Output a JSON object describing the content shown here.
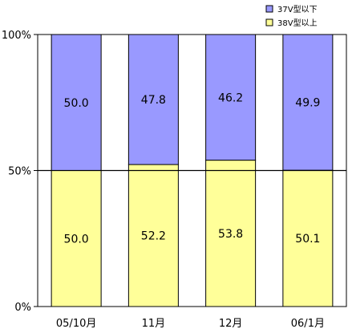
{
  "chart_data": {
    "type": "bar",
    "stacked": true,
    "percent": true,
    "categories": [
      "05/10月",
      "11月",
      "12月",
      "06/1月"
    ],
    "series": [
      {
        "name": "38V型以上",
        "values": [
          50.0,
          52.2,
          53.8,
          50.1
        ],
        "color": "#ffff99",
        "labels": [
          "50.0",
          "52.2",
          "53.8",
          "50.1"
        ]
      },
      {
        "name": "37V型以下",
        "values": [
          50.0,
          47.8,
          46.2,
          49.9
        ],
        "color": "#9999ff",
        "labels": [
          "50.0",
          "47.8",
          "46.2",
          "49.9"
        ]
      }
    ],
    "legend_order": [
      1,
      0
    ],
    "legend_position": "top-right",
    "ylim": [
      0,
      100
    ],
    "yticks": [
      0,
      50,
      100
    ],
    "ytick_labels": [
      "0%",
      "50%",
      "100%"
    ],
    "reference_line": 50,
    "grid": false,
    "title": "",
    "xlabel": "",
    "ylabel": ""
  }
}
